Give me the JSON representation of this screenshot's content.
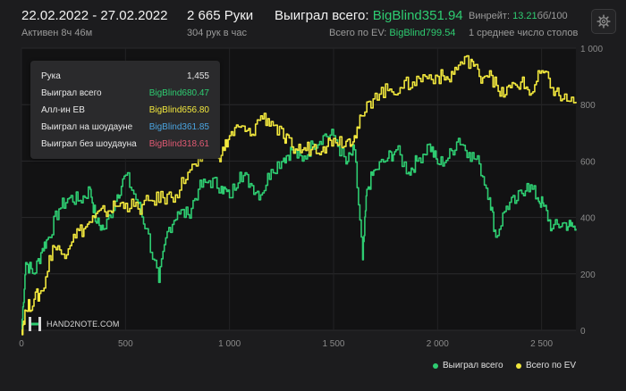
{
  "header": {
    "date_range": "22.02.2022 - 27.02.2022",
    "active_time": "Активен 8ч 46м",
    "hands": "2 665 Руки",
    "hands_per_hour": "304 рук в час",
    "won_label": "Выиграл всего:",
    "won_value": "BigBlind351.94",
    "ev_label": "Всего по EV:",
    "ev_value": "BigBlind799.54",
    "winrate_label": "Винрейт:",
    "winrate_value": "13.21",
    "winrate_unit": "бб/100",
    "avg_tables": "1 среднее число столов"
  },
  "colors": {
    "won": "#2ecc71",
    "ev": "#f1e73d",
    "showdown": "#4aa3df",
    "no_showdown": "#e05a73",
    "background": "#1c1c1e"
  },
  "tooltip": {
    "rows": [
      {
        "label": "Рука",
        "value": "1,455",
        "color": "#e6e6e6"
      },
      {
        "label": "Выиграл всего",
        "value": "BigBlind680.47",
        "color": "#2ecc71"
      },
      {
        "label": "Алл-ин EB",
        "value": "BigBlind656.80",
        "color": "#f1e73d"
      },
      {
        "label": "Выиграл на шоудауне",
        "value": "BigBlind361.85",
        "color": "#4aa3df"
      },
      {
        "label": "Выиграл без шоудауна",
        "value": "BigBlind318.61",
        "color": "#e05a73"
      }
    ]
  },
  "logo": {
    "text": "HAND2NOTE.COM"
  },
  "icons": {
    "settings": "gear-icon",
    "logo": "hand2note-logo-icon"
  },
  "chart_data": {
    "type": "line",
    "xlim": [
      0,
      2665
    ],
    "ylim": [
      0,
      1000
    ],
    "x_ticks": [
      0,
      500,
      1000,
      1500,
      2000,
      2500
    ],
    "x_tick_labels": [
      "0",
      "500",
      "1 000",
      "1 500",
      "2 000",
      "2 500"
    ],
    "y_ticks": [
      0,
      200,
      400,
      600,
      800,
      1000
    ],
    "y_tick_labels": [
      "0",
      "200",
      "400",
      "600",
      "800",
      "1 000"
    ],
    "grid": true,
    "legend_position": "bottom-right",
    "series": [
      {
        "name": "Выиграл всего",
        "color": "#2ecc71",
        "x": [
          0,
          20,
          60,
          100,
          130,
          180,
          230,
          280,
          330,
          360,
          400,
          460,
          500,
          560,
          600,
          660,
          700,
          750,
          800,
          850,
          900,
          960,
          1000,
          1050,
          1100,
          1150,
          1200,
          1260,
          1300,
          1350,
          1400,
          1450,
          1500,
          1560,
          1600,
          1640,
          1660,
          1700,
          1760,
          1800,
          1860,
          1900,
          1960,
          2000,
          2050,
          2100,
          2150,
          2200,
          2250,
          2280,
          2330,
          2380,
          2430,
          2480,
          2510,
          2550,
          2600,
          2640,
          2665
        ],
        "y": [
          0,
          240,
          200,
          290,
          330,
          430,
          470,
          460,
          500,
          380,
          360,
          480,
          550,
          450,
          360,
          170,
          350,
          420,
          410,
          500,
          530,
          510,
          470,
          560,
          520,
          480,
          570,
          610,
          640,
          600,
          660,
          690,
          690,
          590,
          640,
          250,
          500,
          570,
          610,
          640,
          560,
          600,
          660,
          590,
          610,
          680,
          630,
          590,
          470,
          330,
          440,
          460,
          520,
          470,
          440,
          360,
          380,
          370,
          360
        ]
      },
      {
        "name": "Всего по EV",
        "color": "#f1e73d",
        "x": [
          0,
          20,
          60,
          100,
          150,
          200,
          250,
          300,
          350,
          400,
          450,
          500,
          560,
          620,
          680,
          740,
          800,
          860,
          920,
          960,
          1000,
          1050,
          1100,
          1150,
          1200,
          1260,
          1300,
          1350,
          1400,
          1450,
          1500,
          1560,
          1600,
          1640,
          1700,
          1760,
          1820,
          1880,
          1940,
          2000,
          2050,
          2100,
          2160,
          2200,
          2250,
          2300,
          2350,
          2400,
          2450,
          2500,
          2550,
          2600,
          2665
        ],
        "y": [
          0,
          70,
          110,
          140,
          300,
          270,
          340,
          360,
          400,
          420,
          440,
          450,
          430,
          460,
          470,
          480,
          560,
          600,
          650,
          620,
          690,
          720,
          690,
          760,
          740,
          680,
          650,
          640,
          650,
          650,
          680,
          670,
          690,
          760,
          840,
          850,
          860,
          880,
          900,
          900,
          890,
          940,
          960,
          900,
          920,
          830,
          860,
          880,
          840,
          920,
          860,
          820,
          810
        ]
      }
    ]
  },
  "legend": {
    "items": [
      {
        "label": "Выиграл всего",
        "color": "#2ecc71"
      },
      {
        "label": "Всего по EV",
        "color": "#f1e73d"
      }
    ]
  }
}
